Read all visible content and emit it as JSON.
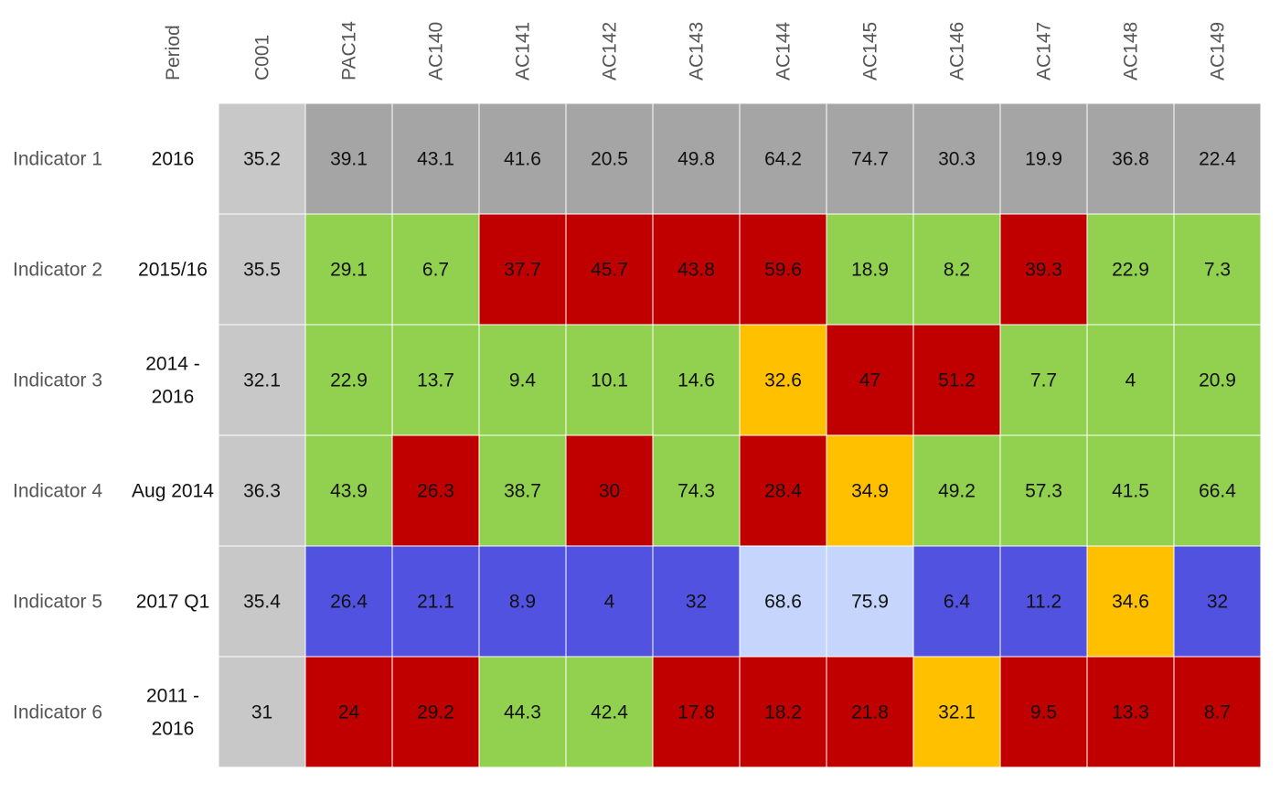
{
  "chart_data": {
    "type": "heatmap",
    "period_header": "Period",
    "columns": [
      "C001",
      "PAC14",
      "AC140",
      "AC141",
      "AC142",
      "AC143",
      "AC144",
      "AC145",
      "AC146",
      "AC147",
      "AC148",
      "AC149"
    ],
    "rows": [
      {
        "indicator": "Indicator 1",
        "period": [
          "2016"
        ],
        "values": [
          "35.2",
          "39.1",
          "43.1",
          "41.6",
          "20.5",
          "49.8",
          "64.2",
          "74.7",
          "30.3",
          "19.9",
          "36.8",
          "22.4"
        ],
        "status": [
          "ref",
          "grey",
          "grey",
          "grey",
          "grey",
          "grey",
          "grey",
          "grey",
          "grey",
          "grey",
          "grey",
          "grey"
        ]
      },
      {
        "indicator": "Indicator 2",
        "period": [
          "2015/16"
        ],
        "values": [
          "35.5",
          "29.1",
          "6.7",
          "37.7",
          "45.7",
          "43.8",
          "59.6",
          "18.9",
          "8.2",
          "39.3",
          "22.9",
          "7.3"
        ],
        "status": [
          "ref",
          "green",
          "green",
          "red",
          "red",
          "red",
          "red",
          "green",
          "green",
          "red",
          "green",
          "green"
        ]
      },
      {
        "indicator": "Indicator 3",
        "period": [
          "2014 -",
          "2016"
        ],
        "values": [
          "32.1",
          "22.9",
          "13.7",
          "9.4",
          "10.1",
          "14.6",
          "32.6",
          "47",
          "51.2",
          "7.7",
          "4",
          "20.9"
        ],
        "status": [
          "ref",
          "green",
          "green",
          "green",
          "green",
          "green",
          "amber",
          "red",
          "red",
          "green",
          "green",
          "green"
        ]
      },
      {
        "indicator": "Indicator 4",
        "period": [
          "Aug 2014"
        ],
        "values": [
          "36.3",
          "43.9",
          "26.3",
          "38.7",
          "30",
          "74.3",
          "28.4",
          "34.9",
          "49.2",
          "57.3",
          "41.5",
          "66.4"
        ],
        "status": [
          "ref",
          "green",
          "red",
          "green",
          "red",
          "green",
          "red",
          "amber",
          "green",
          "green",
          "green",
          "green"
        ]
      },
      {
        "indicator": "Indicator 5",
        "period": [
          "2017 Q1"
        ],
        "values": [
          "35.4",
          "26.4",
          "21.1",
          "8.9",
          "4",
          "32",
          "68.6",
          "75.9",
          "6.4",
          "11.2",
          "34.6",
          "32"
        ],
        "status": [
          "ref",
          "blue",
          "blue",
          "blue",
          "blue",
          "blue",
          "lightblue",
          "lightblue",
          "blue",
          "blue",
          "amber",
          "blue"
        ]
      },
      {
        "indicator": "Indicator 6",
        "period": [
          "2011 -",
          "2016"
        ],
        "values": [
          "31",
          "24",
          "29.2",
          "44.3",
          "42.4",
          "17.8",
          "18.2",
          "21.8",
          "32.1",
          "9.5",
          "13.3",
          "8.7"
        ],
        "status": [
          "ref",
          "red",
          "red",
          "green",
          "green",
          "red",
          "red",
          "red",
          "amber",
          "red",
          "red",
          "red"
        ]
      }
    ],
    "colors": {
      "ref": "#c8c8c8",
      "grey": "#a5a5a5",
      "green": "#92d050",
      "red": "#c00000",
      "amber": "#ffc000",
      "blue": "#5252e0",
      "lightblue": "#c5d5fb"
    },
    "grid": false,
    "legend": "none"
  }
}
